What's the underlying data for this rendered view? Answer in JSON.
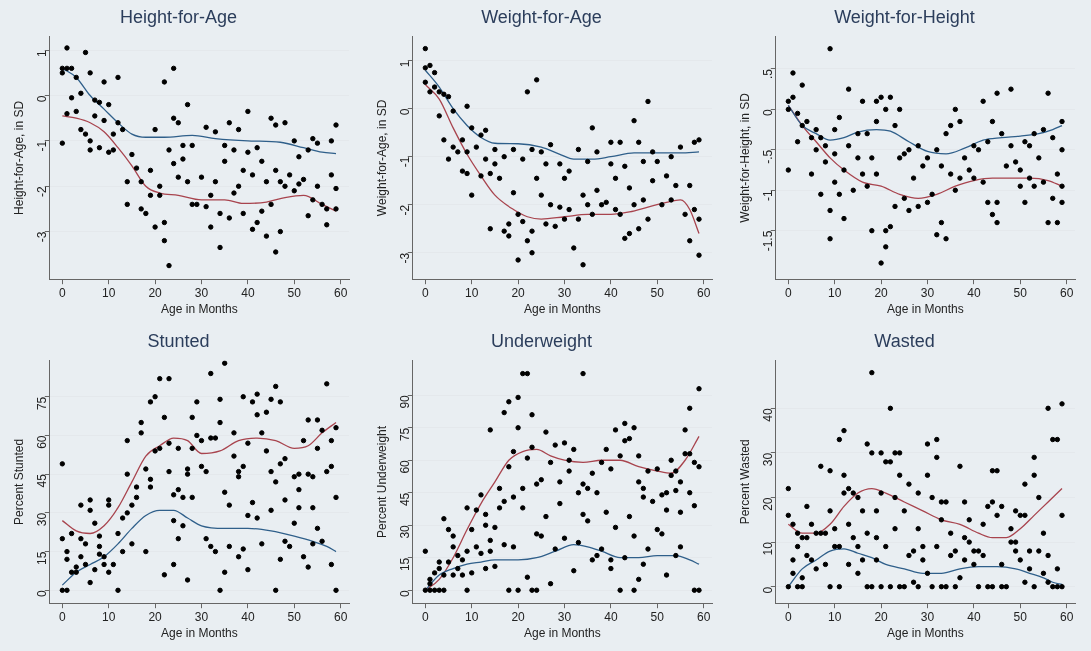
{
  "chart_data": [
    {
      "type": "scatter",
      "title": "Height-for-Age",
      "xlabel": "Age in Months",
      "ylabel": "Height-for-Age, in SD",
      "xlim": [
        -2.7,
        61.8
      ],
      "xticks": [
        0,
        10,
        20,
        30,
        40,
        50,
        60
      ],
      "ylim": [
        -4.05,
        1.3
      ],
      "yticks": [
        -3,
        -2,
        -1,
        0,
        1
      ],
      "grid": "y",
      "legend": false,
      "series": [
        {
          "type": "scatter",
          "marker": "circle",
          "color": "#000000",
          "x": [
            0,
            0,
            0,
            1,
            1,
            1,
            2,
            2,
            3,
            3,
            4,
            4,
            5,
            5,
            6,
            6,
            6,
            7,
            7,
            8,
            8,
            9,
            9,
            10,
            10,
            11,
            11,
            12,
            12,
            13,
            14,
            14,
            15,
            16,
            17,
            17,
            18,
            19,
            19,
            20,
            20,
            21,
            21,
            22,
            22,
            22,
            23,
            23,
            24,
            24,
            24,
            25,
            25,
            26,
            26,
            27,
            27,
            28,
            28,
            29,
            30,
            31,
            31,
            32,
            32,
            33,
            33,
            34,
            34,
            35,
            35,
            36,
            36,
            37,
            37,
            38,
            38,
            39,
            39,
            40,
            40,
            41,
            41,
            42,
            42,
            43,
            43,
            44,
            44,
            45,
            45,
            46,
            46,
            46,
            47,
            47,
            48,
            48,
            49,
            50,
            50,
            51,
            51,
            52,
            53,
            53,
            54,
            54,
            55,
            55,
            56,
            57,
            57,
            58,
            58,
            59,
            59,
            59
          ],
          "values": [
            0.6,
            0.5,
            -1.05,
            1.05,
            -0.4,
            0.6,
            0.6,
            -0.05,
            0.4,
            -0.35,
            0.05,
            -0.75,
            0.95,
            -0.85,
            0.5,
            -1.2,
            -1.0,
            -0.1,
            -0.45,
            -0.15,
            -1.15,
            0.3,
            -0.55,
            -0.2,
            -1.25,
            -0.85,
            -1.2,
            0.4,
            -0.6,
            -0.75,
            -1.9,
            -2.4,
            -1.3,
            -1.6,
            -1.9,
            -2.5,
            -2.6,
            -2.2,
            -1.65,
            -2.9,
            -0.75,
            -2.0,
            -2.2,
            0.3,
            -2.8,
            -3.2,
            -3.75,
            -1.2,
            0.6,
            -0.5,
            -1.5,
            -0.6,
            -1.8,
            -1.4,
            -1.1,
            -0.2,
            -1.9,
            -2.4,
            -1.1,
            -2.4,
            -1.8,
            -0.7,
            -2.45,
            -2.2,
            -2.9,
            -0.8,
            -1.9,
            -3.35,
            -2.6,
            -1.45,
            -1.1,
            -0.6,
            -2.7,
            -2.15,
            -1.2,
            -0.75,
            -2.0,
            -1.65,
            -2.6,
            -0.35,
            -1.25,
            -2.95,
            -1.75,
            -2.8,
            -1.15,
            -2.55,
            -1.45,
            -3.1,
            -1.9,
            -0.5,
            -2.4,
            -3.45,
            -0.65,
            -1.65,
            -3.0,
            -1.9,
            -0.6,
            -2.0,
            -1.75,
            -1.0,
            -2.1,
            -1.35,
            -1.95,
            -1.85,
            -1.2,
            -2.65,
            -0.95,
            -2.3,
            -1.05,
            -2.0,
            -2.4,
            -2.85,
            -2.5,
            -1.0,
            -1.75,
            -2.5,
            -2.05,
            -0.65
          ]
        },
        {
          "type": "line",
          "marker": "none",
          "color": "#2f5f8a",
          "x": [
            0,
            3,
            6,
            9,
            12,
            15,
            18,
            22,
            28,
            33,
            40,
            47,
            52,
            56,
            59
          ],
          "values": [
            0.6,
            0.4,
            0.0,
            -0.3,
            -0.6,
            -0.85,
            -0.92,
            -0.92,
            -0.88,
            -0.95,
            -1.0,
            -1.03,
            -1.15,
            -1.25,
            -1.28
          ]
        },
        {
          "type": "line",
          "marker": "none",
          "color": "#a8444e",
          "x": [
            0,
            3,
            6,
            9,
            12,
            15,
            18,
            21,
            25,
            30,
            35,
            39,
            44,
            48,
            52,
            56,
            59
          ],
          "values": [
            -0.45,
            -0.5,
            -0.6,
            -0.8,
            -1.15,
            -1.55,
            -2.0,
            -2.15,
            -2.2,
            -2.3,
            -2.3,
            -2.38,
            -2.35,
            -2.25,
            -2.2,
            -2.4,
            -2.55
          ]
        }
      ]
    },
    {
      "type": "scatter",
      "title": "Weight-for-Age",
      "xlabel": "Age in Months",
      "ylabel": "Weight-for-Age, in SD",
      "xlim": [
        -2.7,
        61.8
      ],
      "xticks": [
        0,
        10,
        20,
        30,
        40,
        50,
        60
      ],
      "ylim": [
        -3.55,
        1.5
      ],
      "yticks": [
        -3,
        -2,
        -1,
        0,
        1
      ],
      "grid": "y",
      "legend": false,
      "series": [
        {
          "type": "scatter",
          "marker": "circle",
          "color": "#000000",
          "x": [
            0,
            0,
            0,
            1,
            1,
            2,
            2,
            3,
            3,
            4,
            4,
            5,
            5,
            6,
            6,
            7,
            8,
            8,
            9,
            9,
            9,
            10,
            10,
            11,
            12,
            12,
            13,
            13,
            14,
            14,
            15,
            15,
            16,
            17,
            17,
            18,
            18,
            19,
            19,
            20,
            20,
            21,
            21,
            22,
            22,
            23,
            23,
            23,
            24,
            24,
            25,
            25,
            26,
            26,
            27,
            27,
            28,
            29,
            29,
            30,
            30,
            31,
            31,
            32,
            33,
            33,
            34,
            34,
            35,
            35,
            36,
            36,
            37,
            37,
            38,
            39,
            40,
            40,
            41,
            41,
            42,
            42,
            43,
            43,
            44,
            44,
            45,
            45,
            46,
            46,
            47,
            47,
            48,
            48,
            49,
            49,
            50,
            51,
            52,
            53,
            53,
            54,
            55,
            56,
            57,
            57,
            58,
            58,
            59,
            59,
            59
          ],
          "values": [
            1.25,
            0.85,
            0.55,
            0.9,
            0.35,
            0.75,
            0.45,
            0.35,
            -0.15,
            0.3,
            -0.65,
            0.25,
            -1.05,
            -0.05,
            -0.8,
            -0.9,
            -0.65,
            -1.3,
            0.05,
            -0.9,
            -1.35,
            -0.4,
            -1.8,
            -0.8,
            -0.55,
            -1.4,
            -0.45,
            -1.05,
            -2.5,
            -1.35,
            -0.85,
            -1.15,
            -1.45,
            -1.0,
            -2.55,
            -2.4,
            -2.65,
            -1.75,
            -0.85,
            -3.15,
            -2.2,
            -2.35,
            -1.05,
            0.35,
            -2.75,
            -3.0,
            -2.55,
            -0.85,
            0.6,
            -1.45,
            -0.9,
            -1.8,
            -1.15,
            -2.4,
            -0.75,
            -2.0,
            -2.45,
            -2.05,
            -1.15,
            -2.3,
            -1.45,
            -1.3,
            -2.1,
            -2.9,
            -0.85,
            -2.3,
            -3.25,
            -1.8,
            -1.1,
            -2.0,
            -0.4,
            -2.2,
            -1.7,
            -0.9,
            -2.0,
            -1.95,
            -0.7,
            -1.15,
            -1.45,
            -2.1,
            -0.7,
            -2.2,
            -1.2,
            -2.7,
            -2.6,
            -1.65,
            -0.25,
            -2.0,
            -0.7,
            -2.5,
            -1.9,
            -1.1,
            0.15,
            -2.3,
            -1.5,
            -0.9,
            -1.1,
            -2.0,
            -1.4,
            -1.0,
            -1.9,
            -1.6,
            -0.8,
            -2.2,
            -2.75,
            -1.6,
            -2.1,
            -0.7,
            -3.05,
            -2.3,
            -0.65
          ]
        },
        {
          "type": "line",
          "marker": "none",
          "color": "#2f5f8a",
          "x": [
            0,
            3,
            6,
            9,
            12,
            15,
            20,
            25,
            29,
            32,
            36,
            40,
            45,
            50,
            55,
            59
          ],
          "values": [
            0.8,
            0.45,
            0.0,
            -0.35,
            -0.6,
            -0.72,
            -0.73,
            -0.8,
            -0.95,
            -1.05,
            -1.05,
            -1.0,
            -0.92,
            -0.92,
            -0.92,
            -0.9
          ]
        },
        {
          "type": "line",
          "marker": "none",
          "color": "#a8444e",
          "x": [
            0,
            3,
            6,
            9,
            12,
            15,
            19,
            22,
            25,
            30,
            35,
            40,
            44,
            48,
            52,
            55,
            57,
            59
          ],
          "values": [
            0.5,
            0.2,
            -0.4,
            -0.95,
            -1.4,
            -1.8,
            -2.1,
            -2.25,
            -2.3,
            -2.25,
            -2.2,
            -2.2,
            -2.15,
            -2.05,
            -1.95,
            -1.9,
            -2.1,
            -2.6
          ]
        }
      ]
    },
    {
      "type": "scatter",
      "title": "Weight-for-Height",
      "xlabel": "Age in Months",
      "ylabel": "Weight-for-Height, in SD",
      "xlim": [
        -2.7,
        61.8
      ],
      "xticks": [
        0,
        10,
        20,
        30,
        40,
        50,
        60
      ],
      "ylim": [
        -2.1,
        0.9
      ],
      "yticks": [
        {
          "value": -1.5,
          "label": "-1.5"
        },
        -1,
        {
          "value": -0.5,
          "label": "-.5"
        },
        0,
        {
          "value": 0.5,
          "label": ".5"
        }
      ],
      "grid": "y",
      "legend": false,
      "series": [
        {
          "type": "scatter",
          "marker": "circle",
          "color": "#000000",
          "x": [
            0,
            0,
            0,
            1,
            1,
            2,
            2,
            3,
            3,
            4,
            5,
            5,
            6,
            6,
            7,
            7,
            8,
            8,
            9,
            9,
            9,
            10,
            10,
            10,
            11,
            11,
            12,
            12,
            13,
            13,
            14,
            15,
            15,
            16,
            16,
            17,
            17,
            18,
            18,
            19,
            19,
            19,
            20,
            20,
            21,
            21,
            21,
            22,
            22,
            23,
            23,
            24,
            24,
            25,
            25,
            26,
            26,
            27,
            28,
            28,
            29,
            30,
            30,
            31,
            32,
            32,
            33,
            33,
            34,
            34,
            35,
            35,
            36,
            36,
            37,
            37,
            38,
            39,
            40,
            40,
            41,
            42,
            42,
            43,
            43,
            44,
            44,
            45,
            45,
            45,
            46,
            47,
            48,
            48,
            49,
            50,
            50,
            51,
            51,
            52,
            52,
            53,
            53,
            54,
            55,
            55,
            56,
            56,
            57,
            57,
            58,
            58,
            59,
            59,
            59,
            59
          ],
          "values": [
            0.1,
            -0.75,
            0.0,
            0.45,
            0.15,
            -0.05,
            -0.4,
            0.3,
            -0.2,
            -0.15,
            -0.35,
            -0.8,
            -0.25,
            -0.5,
            -0.35,
            -1.05,
            -0.45,
            -0.65,
            0.75,
            -1.25,
            -1.6,
            -0.25,
            -0.55,
            -0.9,
            -0.1,
            -1.05,
            -0.75,
            -1.35,
            0.25,
            -0.45,
            -1.0,
            -0.3,
            -0.6,
            0.1,
            -0.8,
            -0.3,
            -0.95,
            -1.5,
            -0.6,
            0.1,
            -0.15,
            -0.8,
            0.15,
            -1.9,
            0.0,
            -1.5,
            -1.7,
            0.15,
            -1.45,
            -0.2,
            -1.2,
            0.0,
            -0.6,
            -0.55,
            -1.1,
            -1.25,
            -0.5,
            -0.85,
            -1.2,
            -0.45,
            -0.7,
            -0.6,
            -1.15,
            -1.05,
            -1.55,
            -0.5,
            -1.4,
            -0.7,
            -0.3,
            -1.6,
            -0.2,
            -0.8,
            0.0,
            -1.0,
            -0.15,
            -0.85,
            -0.6,
            -0.75,
            -0.45,
            -0.85,
            -0.5,
            0.1,
            -0.9,
            -1.15,
            -0.4,
            -1.3,
            -0.15,
            0.2,
            -1.15,
            -1.4,
            -0.3,
            -0.7,
            0.25,
            -0.45,
            -0.65,
            -0.75,
            -0.95,
            -0.4,
            -1.15,
            -0.45,
            -0.85,
            -0.3,
            -0.95,
            -0.6,
            -0.25,
            -0.9,
            0.2,
            -1.4,
            -0.35,
            -1.1,
            -0.8,
            -1.4,
            -0.15,
            -0.95,
            -1.15,
            -0.5
          ]
        },
        {
          "type": "line",
          "marker": "none",
          "color": "#2f5f8a",
          "x": [
            0,
            3,
            6,
            9,
            12,
            15,
            19,
            22,
            26,
            30,
            34,
            38,
            42,
            46,
            50,
            54,
            57,
            59
          ],
          "values": [
            0.05,
            -0.2,
            -0.3,
            -0.38,
            -0.35,
            -0.28,
            -0.25,
            -0.27,
            -0.4,
            -0.52,
            -0.55,
            -0.48,
            -0.38,
            -0.35,
            -0.33,
            -0.3,
            -0.25,
            -0.2
          ]
        },
        {
          "type": "line",
          "marker": "none",
          "color": "#a8444e",
          "x": [
            0,
            3,
            6,
            9,
            12,
            16,
            20,
            24,
            28,
            32,
            36,
            40,
            44,
            48,
            52,
            56,
            59
          ],
          "values": [
            0.05,
            -0.2,
            -0.4,
            -0.6,
            -0.75,
            -0.9,
            -0.95,
            -1.05,
            -1.1,
            -1.05,
            -0.95,
            -0.88,
            -0.85,
            -0.85,
            -0.85,
            -0.88,
            -0.95
          ]
        }
      ]
    },
    {
      "type": "scatter",
      "title": "Stunted",
      "xlabel": "Age in Months",
      "ylabel": "Percent Stunted",
      "xlim": [
        -2.7,
        61.8
      ],
      "xticks": [
        0,
        10,
        20,
        30,
        40,
        50,
        60
      ],
      "ylim": [
        -5,
        89
      ],
      "yticks": [
        0,
        15,
        30,
        45,
        60,
        75
      ],
      "grid": "y",
      "legend": false,
      "series": [
        {
          "type": "scatter",
          "marker": "circle",
          "color": "#000000",
          "x": [
            0,
            0,
            0,
            1,
            1,
            1,
            2,
            2,
            3,
            3,
            4,
            4,
            4,
            5,
            5,
            6,
            6,
            6,
            7,
            7,
            8,
            8,
            8,
            9,
            9,
            10,
            10,
            10,
            11,
            12,
            12,
            13,
            13,
            14,
            14,
            14,
            15,
            15,
            16,
            16,
            17,
            17,
            18,
            18,
            19,
            19,
            19,
            20,
            20,
            21,
            21,
            22,
            22,
            23,
            23,
            23,
            24,
            24,
            24,
            25,
            25,
            25,
            26,
            26,
            27,
            27,
            27,
            28,
            28,
            28,
            29,
            29,
            30,
            30,
            31,
            31,
            32,
            32,
            32,
            33,
            33,
            34,
            34,
            34,
            35,
            35,
            35,
            36,
            36,
            37,
            37,
            38,
            38,
            38,
            39,
            39,
            39,
            40,
            40,
            40,
            41,
            41,
            42,
            42,
            42,
            43,
            43,
            44,
            44,
            45,
            45,
            45,
            46,
            46,
            46,
            47,
            47,
            47,
            48,
            48,
            48,
            49,
            50,
            50,
            51,
            51,
            51,
            52,
            52,
            53,
            53,
            53,
            54,
            54,
            54,
            55,
            55,
            55,
            56,
            56,
            57,
            57,
            58,
            58,
            58,
            59,
            59,
            59
          ],
          "values": [
            0,
            20,
            49,
            0,
            15,
            12,
            22,
            7,
            7,
            9,
            33,
            20,
            13,
            18,
            10,
            35,
            31,
            3,
            8,
            26,
            14,
            21,
            17,
            10,
            13,
            7,
            35,
            33,
            10,
            0,
            22,
            28,
            15,
            58,
            45,
            30,
            33,
            18,
            40,
            36,
            65,
            61,
            47,
            15,
            73,
            40,
            43,
            54,
            75,
            82,
            55,
            67,
            6,
            82,
            57,
            46,
            27,
            37,
            10,
            55,
            39,
            20,
            36,
            25,
            47,
            45,
            4,
            67,
            55,
            36,
            73,
            60,
            58,
            48,
            46,
            20,
            84,
            59,
            17,
            59,
            15,
            74,
            0,
            65,
            88,
            38,
            7,
            33,
            17,
            61,
            52,
            46,
            44,
            13,
            75,
            48,
            16,
            57,
            29,
            8,
            73,
            34,
            76,
            68,
            28,
            61,
            18,
            69,
            54,
            74,
            46,
            31,
            79,
            42,
            0,
            73,
            49,
            12,
            51,
            35,
            19,
            17,
            44,
            26,
            45,
            39,
            32,
            58,
            13,
            66,
            45,
            9,
            44,
            32,
            18,
            66,
            55,
            24,
            62,
            19,
            80,
            46,
            58,
            48,
            10,
            63,
            36,
            0
          ]
        },
        {
          "type": "line",
          "marker": "none",
          "color": "#2f5f8a",
          "x": [
            0,
            3,
            6,
            9,
            12,
            15,
            18,
            21,
            24,
            27,
            30,
            35,
            40,
            45,
            50,
            54,
            57,
            59
          ],
          "values": [
            2,
            7,
            10,
            13,
            18,
            24,
            29,
            31,
            31,
            28,
            25,
            24,
            24,
            23,
            21,
            19,
            17,
            15
          ]
        },
        {
          "type": "line",
          "marker": "none",
          "color": "#a8444e",
          "x": [
            0,
            3,
            6,
            9,
            12,
            15,
            18,
            21,
            24,
            27,
            30,
            34,
            38,
            42,
            46,
            50,
            53,
            56,
            59
          ],
          "values": [
            27,
            23,
            22,
            25,
            32,
            42,
            52,
            56,
            59,
            58,
            53,
            54,
            58,
            59,
            58,
            55,
            56,
            61,
            65
          ]
        }
      ]
    },
    {
      "type": "scatter",
      "title": "Underweight",
      "xlabel": "Age in Months",
      "ylabel": "Percent Underweight",
      "xlim": [
        -2.7,
        61.8
      ],
      "xticks": [
        0,
        10,
        20,
        30,
        40,
        50,
        60
      ],
      "ylim": [
        -6,
        106
      ],
      "yticks": [
        0,
        15,
        30,
        45,
        60,
        75,
        90
      ],
      "grid": "y",
      "legend": false,
      "series": [
        {
          "type": "scatter",
          "marker": "circle",
          "color": "#000000",
          "x": [
            0,
            0,
            1,
            1,
            1,
            2,
            2,
            3,
            3,
            3,
            4,
            4,
            4,
            5,
            5,
            6,
            6,
            6,
            7,
            7,
            8,
            8,
            9,
            9,
            9,
            10,
            10,
            11,
            11,
            12,
            12,
            13,
            13,
            13,
            14,
            14,
            14,
            15,
            15,
            16,
            16,
            17,
            17,
            17,
            18,
            18,
            18,
            19,
            19,
            19,
            20,
            20,
            20,
            21,
            21,
            21,
            22,
            22,
            22,
            23,
            23,
            23,
            24,
            24,
            24,
            25,
            25,
            26,
            26,
            27,
            27,
            28,
            28,
            29,
            29,
            30,
            30,
            31,
            31,
            32,
            32,
            33,
            33,
            34,
            34,
            34,
            35,
            35,
            36,
            36,
            37,
            37,
            38,
            38,
            39,
            39,
            40,
            40,
            40,
            41,
            41,
            42,
            42,
            43,
            43,
            43,
            44,
            44,
            45,
            45,
            45,
            46,
            46,
            46,
            47,
            47,
            47,
            48,
            48,
            49,
            50,
            50,
            51,
            51,
            52,
            52,
            52,
            53,
            53,
            54,
            54,
            54,
            55,
            55,
            55,
            56,
            56,
            57,
            57,
            57,
            58,
            58,
            58,
            59,
            59,
            59
          ],
          "values": [
            0,
            18,
            0,
            3,
            5,
            8,
            0,
            10,
            0,
            13,
            33,
            7,
            0,
            13,
            28,
            25,
            20,
            7,
            16,
            10,
            14,
            7,
            38,
            18,
            0,
            28,
            8,
            37,
            20,
            44,
            17,
            30,
            35,
            10,
            74,
            23,
            18,
            29,
            11,
            47,
            38,
            82,
            41,
            21,
            87,
            57,
            0,
            64,
            43,
            20,
            89,
            75,
            0,
            100,
            47,
            38,
            100,
            61,
            6,
            81,
            66,
            0,
            49,
            26,
            0,
            51,
            25,
            73,
            34,
            59,
            3,
            67,
            19,
            50,
            40,
            68,
            24,
            60,
            55,
            65,
            9,
            45,
            22,
            100,
            49,
            35,
            47,
            32,
            54,
            14,
            45,
            16,
            59,
            19,
            65,
            36,
            56,
            14,
            10,
            74,
            29,
            62,
            0,
            77,
            69,
            15,
            70,
            34,
            75,
            25,
            0,
            62,
            50,
            5,
            47,
            43,
            12,
            55,
            19,
            41,
            56,
            28,
            44,
            26,
            45,
            37,
            7,
            60,
            53,
            55,
            46,
            16,
            50,
            36,
            20,
            74,
            63,
            84,
            63,
            45,
            59,
            39,
            0,
            93,
            57,
            0
          ]
        },
        {
          "type": "line",
          "marker": "none",
          "color": "#2f5f8a",
          "x": [
            0,
            3,
            6,
            9,
            12,
            15,
            20,
            24,
            28,
            32,
            35,
            38,
            42,
            46,
            50,
            54,
            57,
            59
          ],
          "values": [
            0,
            7,
            10,
            12,
            13,
            14,
            14,
            15,
            18,
            21,
            20,
            18,
            15,
            15,
            16,
            16,
            14,
            12
          ]
        },
        {
          "type": "line",
          "marker": "none",
          "color": "#a8444e",
          "x": [
            0,
            3,
            6,
            9,
            12,
            15,
            18,
            21,
            24,
            27,
            30,
            34,
            38,
            42,
            46,
            50,
            53,
            56,
            59
          ],
          "values": [
            0,
            5,
            15,
            28,
            40,
            50,
            60,
            64,
            65,
            62,
            60,
            59,
            60,
            60,
            57,
            55,
            54,
            60,
            71
          ]
        }
      ]
    },
    {
      "type": "scatter",
      "title": "Wasted",
      "xlabel": "Age in Months",
      "ylabel": "Percent Wasted",
      "xlim": [
        -2.7,
        61.8
      ],
      "xticks": [
        0,
        10,
        20,
        30,
        40,
        50,
        60
      ],
      "ylim": [
        -3.7,
        50.7
      ],
      "yticks": [
        0,
        10,
        20,
        30,
        40
      ],
      "grid": "y",
      "legend": false,
      "series": [
        {
          "type": "scatter",
          "marker": "circle",
          "color": "#000000",
          "x": [
            0,
            0,
            0,
            1,
            1,
            1,
            2,
            2,
            2,
            3,
            3,
            3,
            4,
            4,
            4,
            5,
            5,
            6,
            6,
            7,
            7,
            8,
            8,
            9,
            9,
            9,
            10,
            10,
            11,
            11,
            11,
            12,
            12,
            12,
            13,
            13,
            13,
            14,
            14,
            15,
            15,
            15,
            16,
            16,
            17,
            17,
            17,
            18,
            18,
            18,
            19,
            19,
            19,
            20,
            20,
            20,
            21,
            21,
            22,
            22,
            22,
            23,
            23,
            23,
            24,
            24,
            24,
            25,
            25,
            26,
            26,
            27,
            27,
            28,
            28,
            28,
            29,
            29,
            30,
            30,
            30,
            31,
            31,
            32,
            32,
            32,
            33,
            33,
            33,
            34,
            34,
            35,
            35,
            36,
            36,
            37,
            37,
            38,
            38,
            38,
            39,
            39,
            40,
            40,
            41,
            41,
            42,
            42,
            43,
            43,
            44,
            44,
            44,
            45,
            45,
            46,
            46,
            46,
            47,
            48,
            48,
            49,
            49,
            49,
            50,
            50,
            51,
            51,
            51,
            52,
            52,
            53,
            53,
            53,
            54,
            54,
            55,
            55,
            56,
            56,
            56,
            57,
            57,
            58,
            58,
            58,
            59,
            59,
            59
          ],
          "values": [
            22,
            16,
            0,
            14,
            6,
            3,
            12,
            0,
            9,
            11,
            2,
            0,
            18,
            7,
            11,
            14,
            6,
            12,
            4,
            27,
            12,
            12,
            5,
            26,
            17,
            0,
            13,
            9,
            33,
            9,
            0,
            35,
            25,
            21,
            22,
            14,
            5,
            21,
            11,
            20,
            3,
            9,
            17,
            6,
            32,
            12,
            0,
            48,
            30,
            0,
            17,
            11,
            6,
            30,
            21,
            0,
            28,
            9,
            40,
            28,
            0,
            30,
            20,
            13,
            30,
            25,
            0,
            17,
            0,
            23,
            7,
            8,
            1,
            21,
            13,
            0,
            9,
            6,
            32,
            25,
            3,
            20,
            0,
            33,
            29,
            9,
            19,
            15,
            0,
            19,
            0,
            12,
            7,
            8,
            0,
            27,
            2,
            19,
            11,
            6,
            15,
            10,
            8,
            5,
            8,
            0,
            14,
            7,
            18,
            0,
            26,
            19,
            0,
            26,
            16,
            18,
            5,
            0,
            0,
            13,
            10,
            17,
            10,
            8,
            16,
            6,
            23,
            16,
            1,
            8,
            4,
            29,
            25,
            0,
            20,
            8,
            12,
            3,
            40,
            7,
            1,
            33,
            0,
            33,
            4,
            0,
            41,
            16,
            0
          ]
        },
        {
          "type": "line",
          "marker": "none",
          "color": "#2f5f8a",
          "x": [
            0,
            3,
            6,
            9,
            12,
            15,
            18,
            21,
            25,
            29,
            33,
            37,
            41,
            45,
            49,
            52,
            55,
            57,
            59
          ],
          "values": [
            0,
            4,
            6,
            8,
            8.5,
            7.5,
            6.5,
            5,
            4,
            3,
            3,
            4,
            4.5,
            4.5,
            4,
            3,
            2,
            1,
            0.5
          ]
        },
        {
          "type": "line",
          "marker": "none",
          "color": "#a8444e",
          "x": [
            0,
            3,
            6,
            9,
            12,
            15,
            18,
            21,
            25,
            29,
            33,
            37,
            41,
            44,
            47,
            50,
            53,
            56,
            59
          ],
          "values": [
            14,
            12,
            12,
            14,
            18,
            21,
            22,
            21,
            19,
            17,
            15,
            14,
            12,
            11,
            11,
            13,
            16,
            19,
            22
          ]
        }
      ]
    }
  ]
}
